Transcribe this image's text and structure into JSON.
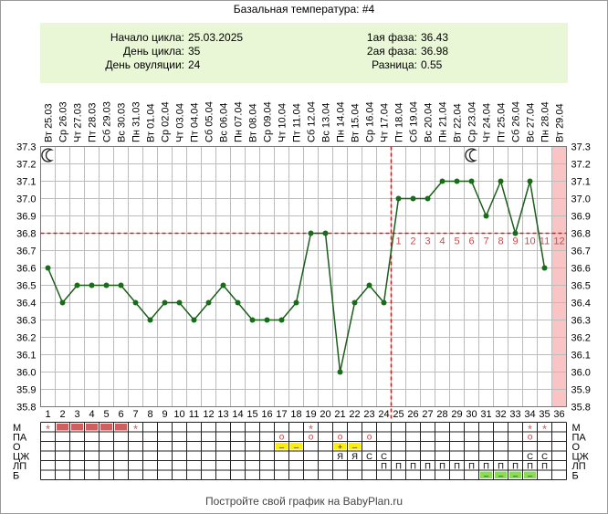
{
  "title": "Базальная температура: #4",
  "info": {
    "cycle_start_label": "Начало цикла:",
    "cycle_start": "25.03.2025",
    "cycle_day_label": "День цикла:",
    "cycle_day": "35",
    "ovulation_day_label": "День овуляции:",
    "ovulation_day": "24",
    "phase1_label": "1ая фаза:",
    "phase1": "36.43",
    "phase2_label": "2ая фаза:",
    "phase2": "36.98",
    "diff_label": "Разница:",
    "diff": "0.55"
  },
  "footer": "Постройте свой график на BabyPlan.ru",
  "chart_data": {
    "type": "line",
    "dates": [
      "Вт 25.03",
      "Ср 26.03",
      "Чт 27.03",
      "Пт 28.03",
      "Сб 29.03",
      "Вс 30.03",
      "Пн 31.03",
      "Вт 01.04",
      "Ср 02.04",
      "Чт 03.04",
      "Пт 04.04",
      "Сб 05.04",
      "Вс 06.04",
      "Пн 07.04",
      "Вт 08.04",
      "Ср 09.04",
      "Чт 10.04",
      "Пт 11.04",
      "Сб 12.04",
      "Вс 13.04",
      "Пн 14.04",
      "Вт 15.04",
      "Ср 16.04",
      "Чт 17.04",
      "Пт 18.04",
      "Сб 19.04",
      "Вс 20.04",
      "Пн 21.04",
      "Вт 22.04",
      "Ср 23.04",
      "Чт 24.04",
      "Пт 25.04",
      "Сб 26.04",
      "Вс 27.04",
      "Пн 28.04",
      "Вт 29.04"
    ],
    "days": [
      1,
      2,
      3,
      4,
      5,
      6,
      7,
      8,
      9,
      10,
      11,
      12,
      13,
      14,
      15,
      16,
      17,
      18,
      19,
      20,
      21,
      22,
      23,
      24,
      25,
      26,
      27,
      28,
      29,
      30,
      31,
      32,
      33,
      34,
      35,
      36
    ],
    "temperatures": [
      36.6,
      36.4,
      36.5,
      36.5,
      36.5,
      36.5,
      36.4,
      36.3,
      36.4,
      36.4,
      36.3,
      36.4,
      36.5,
      36.4,
      36.3,
      36.3,
      36.3,
      36.4,
      36.8,
      36.8,
      36.0,
      36.4,
      36.5,
      36.4,
      37.0,
      37.0,
      37.0,
      37.1,
      37.1,
      37.1,
      36.9,
      37.1,
      36.8,
      37.1,
      36.6,
      null
    ],
    "ylim": [
      35.8,
      37.3
    ],
    "yticks": [
      "35.8",
      "35.9",
      "36.0",
      "36.1",
      "36.2",
      "36.3",
      "36.4",
      "36.5",
      "36.6",
      "36.7",
      "36.8",
      "36.9",
      "37.0",
      "37.1",
      "37.2",
      "37.3"
    ],
    "coverline": 36.8,
    "ovulation_line_after_day": 24,
    "luteal_day_labels": [
      "1",
      "2",
      "3",
      "4",
      "5",
      "6",
      "7",
      "8",
      "9",
      "10",
      "11",
      "12"
    ],
    "luteal_start_day": 25,
    "highlight_day": 36,
    "moon_days": [
      1,
      30
    ],
    "colors": {
      "line": "#1a5e1a",
      "dot": "#1a6b1a",
      "coverline": "#d02020",
      "highlight": "#f8c4c4",
      "grid": "#bcbcbc",
      "luteal_labels": "#c05050"
    }
  },
  "table": {
    "row_labels": [
      "М",
      "ПА",
      "О",
      "ЦЖ",
      "ЛП",
      "Б"
    ],
    "M": {
      "filled_days": [
        2,
        3,
        4,
        5,
        6
      ],
      "star_days": [
        1,
        6,
        7,
        19,
        34,
        35
      ],
      "fill_color": "#d06060",
      "star": "*"
    },
    "PA": {
      "circle_days": [
        17,
        19,
        21,
        23,
        34
      ],
      "circle": "о"
    },
    "O": {
      "cells": [
        {
          "day": 17,
          "text": "–"
        },
        {
          "day": 18,
          "text": "–"
        },
        {
          "day": 21,
          "text": "+"
        },
        {
          "day": 22,
          "text": "–"
        }
      ],
      "fill_color": "#ffee00"
    },
    "CZh": {
      "cells": [
        {
          "day": 21,
          "text": "Я"
        },
        {
          "day": 22,
          "text": "Я"
        },
        {
          "day": 23,
          "text": "С"
        },
        {
          "day": 24,
          "text": "С"
        },
        {
          "day": 34,
          "text": "С"
        },
        {
          "day": 35,
          "text": "С"
        }
      ]
    },
    "LP": {
      "from_day": 24,
      "to_day": 35,
      "text": "П"
    },
    "B": {
      "from_day": 31,
      "to_day": 34,
      "text": "–",
      "fill_color": "#88dd55"
    }
  }
}
